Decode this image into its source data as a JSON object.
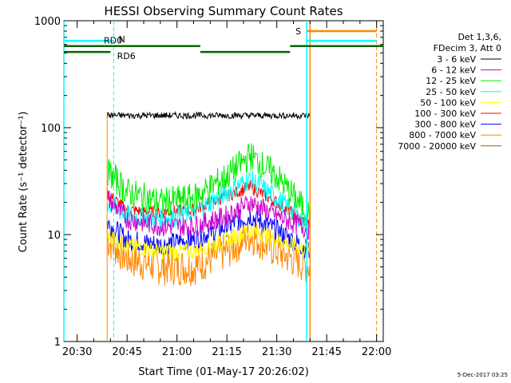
{
  "chart_data": {
    "type": "line",
    "title": "HESSI Observing Summary Count Rates",
    "xlabel": "Start Time (01-May-17 20:26:02)",
    "ylabel": "Count Rate (s⁻¹ detector⁻¹)",
    "y_scale": "log",
    "ylim": [
      1,
      1000
    ],
    "xlim": [
      "20:26",
      "22:02"
    ],
    "x_ticks": [
      "20:30",
      "20:45",
      "21:00",
      "21:15",
      "21:30",
      "21:45",
      "22:00"
    ],
    "y_ticks": [
      "1",
      "10",
      "100",
      "1000"
    ],
    "footer": "5-Dec-2017 03:25",
    "legend_header": [
      "Det 1,3,6,",
      "FDecim 3, Att 0"
    ],
    "series": [
      {
        "name": "3 - 6 keV",
        "color": "#000000",
        "x": [
          "20:39",
          "20:45",
          "20:55",
          "21:05",
          "21:15",
          "21:25",
          "21:35",
          "21:40"
        ],
        "y": [
          130,
          130,
          130,
          130,
          130,
          130,
          130,
          130
        ]
      },
      {
        "name": "6 - 12 keV",
        "color": "#cc00cc",
        "x": [
          "20:39",
          "20:45",
          "20:55",
          "21:05",
          "21:15",
          "21:22",
          "21:30",
          "21:40"
        ],
        "y": [
          22,
          14,
          12,
          12,
          15,
          20,
          15,
          11
        ]
      },
      {
        "name": "12 - 25 keV",
        "color": "#00ee00",
        "x": [
          "20:39",
          "20:45",
          "20:55",
          "21:05",
          "21:15",
          "21:22",
          "21:30",
          "21:40"
        ],
        "y": [
          40,
          25,
          20,
          22,
          35,
          55,
          35,
          15
        ]
      },
      {
        "name": "25 - 50 keV",
        "color": "#00ffff",
        "x": [
          "20:39",
          "20:45",
          "20:55",
          "21:05",
          "21:15",
          "21:22",
          "21:30",
          "21:40"
        ],
        "y": [
          20,
          15,
          14,
          16,
          25,
          33,
          22,
          12
        ]
      },
      {
        "name": "50 - 100 keV",
        "color": "#ffff00",
        "x": [
          "20:39",
          "20:45",
          "20:55",
          "21:05",
          "21:15",
          "21:22",
          "21:30",
          "21:40"
        ],
        "y": [
          10,
          8,
          7,
          7,
          9,
          11,
          9,
          7
        ]
      },
      {
        "name": "100 - 300 keV",
        "color": "#ff0000",
        "x": [
          "20:39",
          "20:45",
          "20:55",
          "21:05",
          "21:15",
          "21:22",
          "21:30",
          "21:40"
        ],
        "y": [
          24,
          17,
          16,
          17,
          23,
          28,
          20,
          12
        ]
      },
      {
        "name": "300 - 800 keV",
        "color": "#0000ff",
        "x": [
          "20:39",
          "20:45",
          "20:55",
          "21:05",
          "21:15",
          "21:22",
          "21:30",
          "21:40"
        ],
        "y": [
          13,
          9,
          8,
          9,
          12,
          15,
          11,
          7
        ]
      },
      {
        "name": "800 - 7000 keV",
        "color": "#ff8800",
        "x": [
          "20:39",
          "20:45",
          "20:55",
          "21:05",
          "21:15",
          "21:22",
          "21:30",
          "21:40"
        ],
        "y": [
          9,
          6,
          5,
          5,
          7,
          10,
          7,
          5
        ]
      },
      {
        "name": "7000 - 20000 keV",
        "color": "#996600",
        "x": [],
        "y": []
      }
    ],
    "annotations": [
      {
        "text": "N",
        "color": "#00ffff"
      },
      {
        "text": "S",
        "color": "#ff8800"
      },
      {
        "text": "RD0",
        "color": "#006600"
      },
      {
        "text": "RD6",
        "color": "#006600"
      }
    ]
  }
}
